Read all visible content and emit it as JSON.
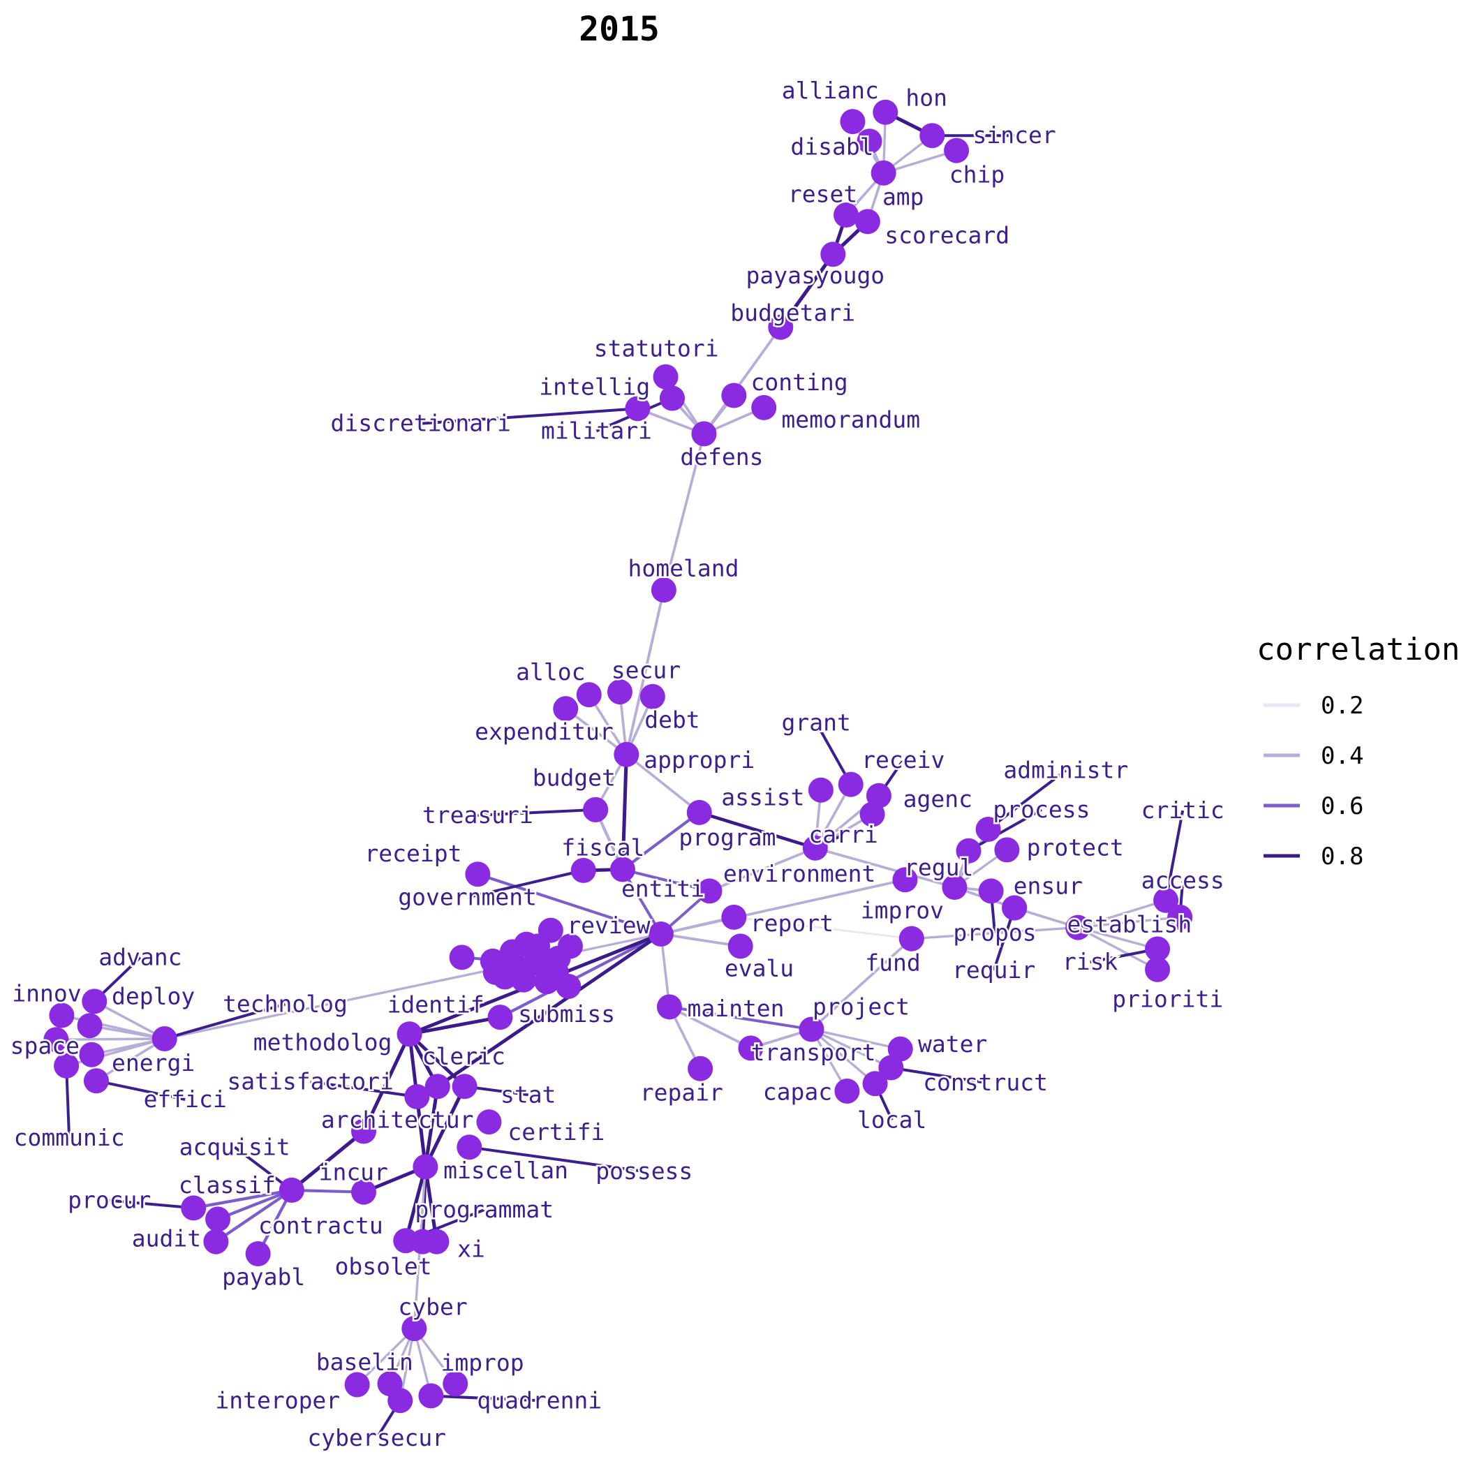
{
  "title": "2015",
  "colors": {
    "node": "#8a2be2",
    "label": "#3b1f8f",
    "leader": "#3b1f8f",
    "edge_scale": [
      "#e9e6f3",
      "#b6aed6",
      "#7b5ec9",
      "#3b1a8a"
    ]
  },
  "legend": {
    "title": "correlation",
    "items": [
      {
        "label": "0.2",
        "value": 0.2
      },
      {
        "label": "0.4",
        "value": 0.4
      },
      {
        "label": "0.6",
        "value": 0.6
      },
      {
        "label": "0.8",
        "value": 0.8
      }
    ]
  },
  "chart_data": {
    "type": "network",
    "nodes": [
      "allianc",
      "hon",
      "sincer",
      "disabl",
      "chip",
      "amp",
      "reset",
      "scorecard",
      "payasyougo",
      "budgetari",
      "statutori",
      "intellig",
      "conting",
      "discretionari",
      "militari",
      "memorandum",
      "defens",
      "homeland",
      "alloc",
      "secur",
      "expenditur",
      "debt",
      "appropri",
      "budget",
      "treasuri",
      "grant",
      "receiv",
      "assist",
      "agenc",
      "administr",
      "process",
      "program",
      "carri",
      "protect",
      "critic",
      "receipt",
      "fiscal",
      "government",
      "entiti",
      "environment",
      "regul",
      "ensur",
      "access",
      "review",
      "report",
      "improv",
      "propos",
      "establish",
      "risk",
      "requir",
      "evalu",
      "fund",
      "prioriti",
      "advanc",
      "innov",
      "deploy",
      "technolog",
      "space",
      "energi",
      "effici",
      "communic",
      "identif",
      "submiss",
      "mainten",
      "project",
      "methodolog",
      "water",
      "cleric",
      "transport",
      "satisfactori",
      "stat",
      "construct",
      "repair",
      "capac",
      "local",
      "architectur",
      "certifi",
      "acquisit",
      "possess",
      "incur",
      "miscellan",
      "classif",
      "procur",
      "contractu",
      "programmat",
      "audit",
      "payabl",
      "obsolet",
      "xi",
      "cyber",
      "baselin",
      "improp",
      "interoper",
      "quadrenni",
      "cybersecur"
    ],
    "edges": [
      [
        "allianc",
        "amp",
        0.35
      ],
      [
        "hon",
        "amp",
        0.3
      ],
      [
        "sincer",
        "amp",
        0.3
      ],
      [
        "sincer",
        "hon",
        0.85
      ],
      [
        "disabl",
        "amp",
        0.3
      ],
      [
        "chip",
        "amp",
        0.35
      ],
      [
        "amp",
        "reset",
        0.4
      ],
      [
        "amp",
        "scorecard",
        0.4
      ],
      [
        "reset",
        "payasyougo",
        0.8
      ],
      [
        "scorecard",
        "payasyougo",
        0.9
      ],
      [
        "payasyougo",
        "budgetari",
        0.9
      ],
      [
        "budgetari",
        "defens",
        0.45
      ],
      [
        "statutori",
        "defens",
        0.4
      ],
      [
        "intellig",
        "defens",
        0.4
      ],
      [
        "conting",
        "defens",
        0.4
      ],
      [
        "discretionari",
        "defens",
        0.4
      ],
      [
        "militari",
        "defens",
        0.4
      ],
      [
        "memorandum",
        "defens",
        0.4
      ],
      [
        "defens",
        "homeland",
        0.4
      ],
      [
        "homeland",
        "appropri",
        0.45
      ],
      [
        "alloc",
        "appropri",
        0.4
      ],
      [
        "secur",
        "appropri",
        0.4
      ],
      [
        "expenditur",
        "appropri",
        0.4
      ],
      [
        "debt",
        "appropri",
        0.4
      ],
      [
        "appropri",
        "fiscal",
        0.85
      ],
      [
        "appropri",
        "program",
        0.4
      ],
      [
        "appropri",
        "budget",
        0.4
      ],
      [
        "budget",
        "fiscal",
        0.5
      ],
      [
        "treasuri",
        "fiscal",
        0.4
      ],
      [
        "fiscal",
        "government",
        0.8
      ],
      [
        "fiscal",
        "entiti",
        0.5
      ],
      [
        "fiscal",
        "review",
        0.5
      ],
      [
        "receipt",
        "review",
        0.55
      ],
      [
        "program",
        "fiscal",
        0.55
      ],
      [
        "program",
        "carri",
        0.7
      ],
      [
        "grant",
        "carri",
        0.4
      ],
      [
        "receiv",
        "carri",
        0.4
      ],
      [
        "assist",
        "carri",
        0.4
      ],
      [
        "agenc",
        "carri",
        0.4
      ],
      [
        "carri",
        "regul",
        0.4
      ],
      [
        "carri",
        "entiti",
        0.4
      ],
      [
        "regul",
        "administr",
        0.3
      ],
      [
        "regul",
        "process",
        0.3
      ],
      [
        "regul",
        "protect",
        0.3
      ],
      [
        "regul",
        "ensur",
        0.4
      ],
      [
        "regul",
        "propos",
        0.4
      ],
      [
        "ensur",
        "establish",
        0.4
      ],
      [
        "establish",
        "access",
        0.3
      ],
      [
        "establish",
        "critic",
        0.3
      ],
      [
        "establish",
        "risk",
        0.3
      ],
      [
        "establish",
        "prioriti",
        0.3
      ],
      [
        "review",
        "report",
        0.45
      ],
      [
        "review",
        "evalu",
        0.45
      ],
      [
        "review",
        "entiti",
        0.5
      ],
      [
        "review",
        "environment",
        0.4
      ],
      [
        "report",
        "improv",
        0.15
      ],
      [
        "improv",
        "fund",
        0.4
      ],
      [
        "fund",
        "establish",
        0.3
      ],
      [
        "fund",
        "project",
        0.4
      ],
      [
        "mainten",
        "project",
        0.5
      ],
      [
        "mainten",
        "transport",
        0.45
      ],
      [
        "mainten",
        "repair",
        0.4
      ],
      [
        "project",
        "water",
        0.3
      ],
      [
        "project",
        "construct",
        0.3
      ],
      [
        "project",
        "capac",
        0.3
      ],
      [
        "project",
        "local",
        0.3
      ],
      [
        "project",
        "transport",
        0.45
      ],
      [
        "identif",
        "methodolog",
        0.85
      ],
      [
        "identif",
        "cleric",
        0.85
      ],
      [
        "identif",
        "stat",
        0.8
      ],
      [
        "identif",
        "satisfactori",
        0.8
      ],
      [
        "identif",
        "architectur",
        0.85
      ],
      [
        "cleric",
        "miscellan",
        0.85
      ],
      [
        "stat",
        "miscellan",
        0.85
      ],
      [
        "satisfactori",
        "miscellan",
        0.85
      ],
      [
        "miscellan",
        "incur",
        0.8
      ],
      [
        "miscellan",
        "programmat",
        0.85
      ],
      [
        "miscellan",
        "obsolet",
        0.85
      ],
      [
        "miscellan",
        "xi",
        0.85
      ],
      [
        "miscellan",
        "cyber",
        0.3
      ],
      [
        "architectur",
        "classif",
        0.9
      ],
      [
        "incur",
        "classif",
        0.55
      ],
      [
        "classif",
        "procur",
        0.6
      ],
      [
        "classif",
        "contractu",
        0.6
      ],
      [
        "classif",
        "audit",
        0.6
      ],
      [
        "classif",
        "payabl",
        0.6
      ],
      [
        "classif",
        "acquisit",
        0.6
      ],
      [
        "cyber",
        "baselin",
        0.3
      ],
      [
        "cyber",
        "improp",
        0.3
      ],
      [
        "cyber",
        "interoper",
        0.3
      ],
      [
        "cyber",
        "quadrenni",
        0.3
      ],
      [
        "cyber",
        "cybersecur",
        0.3
      ],
      [
        "technolog",
        "innov",
        0.35
      ],
      [
        "technolog",
        "advanc",
        0.35
      ],
      [
        "technolog",
        "deploy",
        0.35
      ],
      [
        "technolog",
        "space",
        0.35
      ],
      [
        "technolog",
        "energi",
        0.35
      ],
      [
        "technolog",
        "effici",
        0.35
      ],
      [
        "technolog",
        "communic",
        0.35
      ],
      [
        "technolog",
        "review",
        0.3
      ],
      [
        "submiss",
        "identif",
        0.8
      ],
      [
        "submiss",
        "review",
        0.6
      ],
      [
        "review",
        "mainten",
        0.35
      ],
      [
        "review",
        "methodolog",
        0.8
      ],
      [
        "review",
        "cleric",
        0.8
      ]
    ]
  }
}
